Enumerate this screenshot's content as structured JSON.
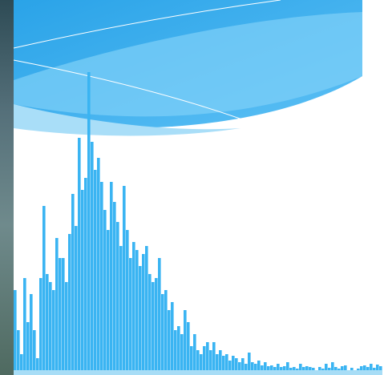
{
  "chart_data": {
    "type": "bar",
    "categories": [
      null,
      null,
      null,
      null,
      null,
      null,
      null,
      null,
      null,
      null,
      null,
      null,
      null,
      null,
      null,
      null,
      null,
      null,
      null,
      null,
      null,
      null,
      null,
      null,
      null,
      null,
      null,
      null,
      null,
      null,
      null,
      null,
      null,
      null,
      null,
      null,
      null,
      null,
      null,
      null,
      null,
      null,
      null,
      null,
      null,
      null,
      null,
      null,
      null,
      null,
      null,
      null,
      null,
      null,
      null,
      null,
      null,
      null,
      null,
      null,
      null,
      null,
      null,
      null,
      null,
      null,
      null,
      null,
      null,
      null,
      null,
      null,
      null,
      null,
      null,
      null,
      null,
      null,
      null,
      null,
      null,
      null,
      null,
      null,
      null,
      null,
      null,
      null,
      null,
      null,
      null,
      null,
      null,
      null,
      null,
      null,
      null,
      null,
      null,
      null,
      null,
      null,
      null,
      null,
      null,
      null,
      null,
      null,
      null,
      null,
      null,
      null,
      null,
      null,
      null
    ],
    "values": [
      100,
      50,
      20,
      115,
      60,
      95,
      50,
      15,
      115,
      205,
      120,
      110,
      100,
      165,
      140,
      140,
      110,
      170,
      220,
      180,
      290,
      225,
      240,
      372,
      285,
      250,
      265,
      235,
      200,
      175,
      235,
      210,
      185,
      155,
      230,
      175,
      140,
      160,
      150,
      130,
      145,
      155,
      120,
      110,
      115,
      140,
      95,
      100,
      75,
      85,
      50,
      55,
      45,
      75,
      60,
      30,
      45,
      25,
      20,
      30,
      35,
      25,
      35,
      20,
      25,
      18,
      20,
      12,
      18,
      15,
      10,
      15,
      8,
      22,
      10,
      8,
      12,
      6,
      10,
      5,
      6,
      4,
      8,
      4,
      5,
      10,
      3,
      4,
      2,
      8,
      4,
      5,
      4,
      3,
      0,
      4,
      2,
      8,
      3,
      10,
      4,
      2,
      5,
      6,
      0,
      3,
      0,
      2,
      5,
      6,
      4,
      8,
      3,
      7,
      5
    ],
    "color": "#3ab4f2",
    "ylim": [
      0,
      380
    ]
  }
}
